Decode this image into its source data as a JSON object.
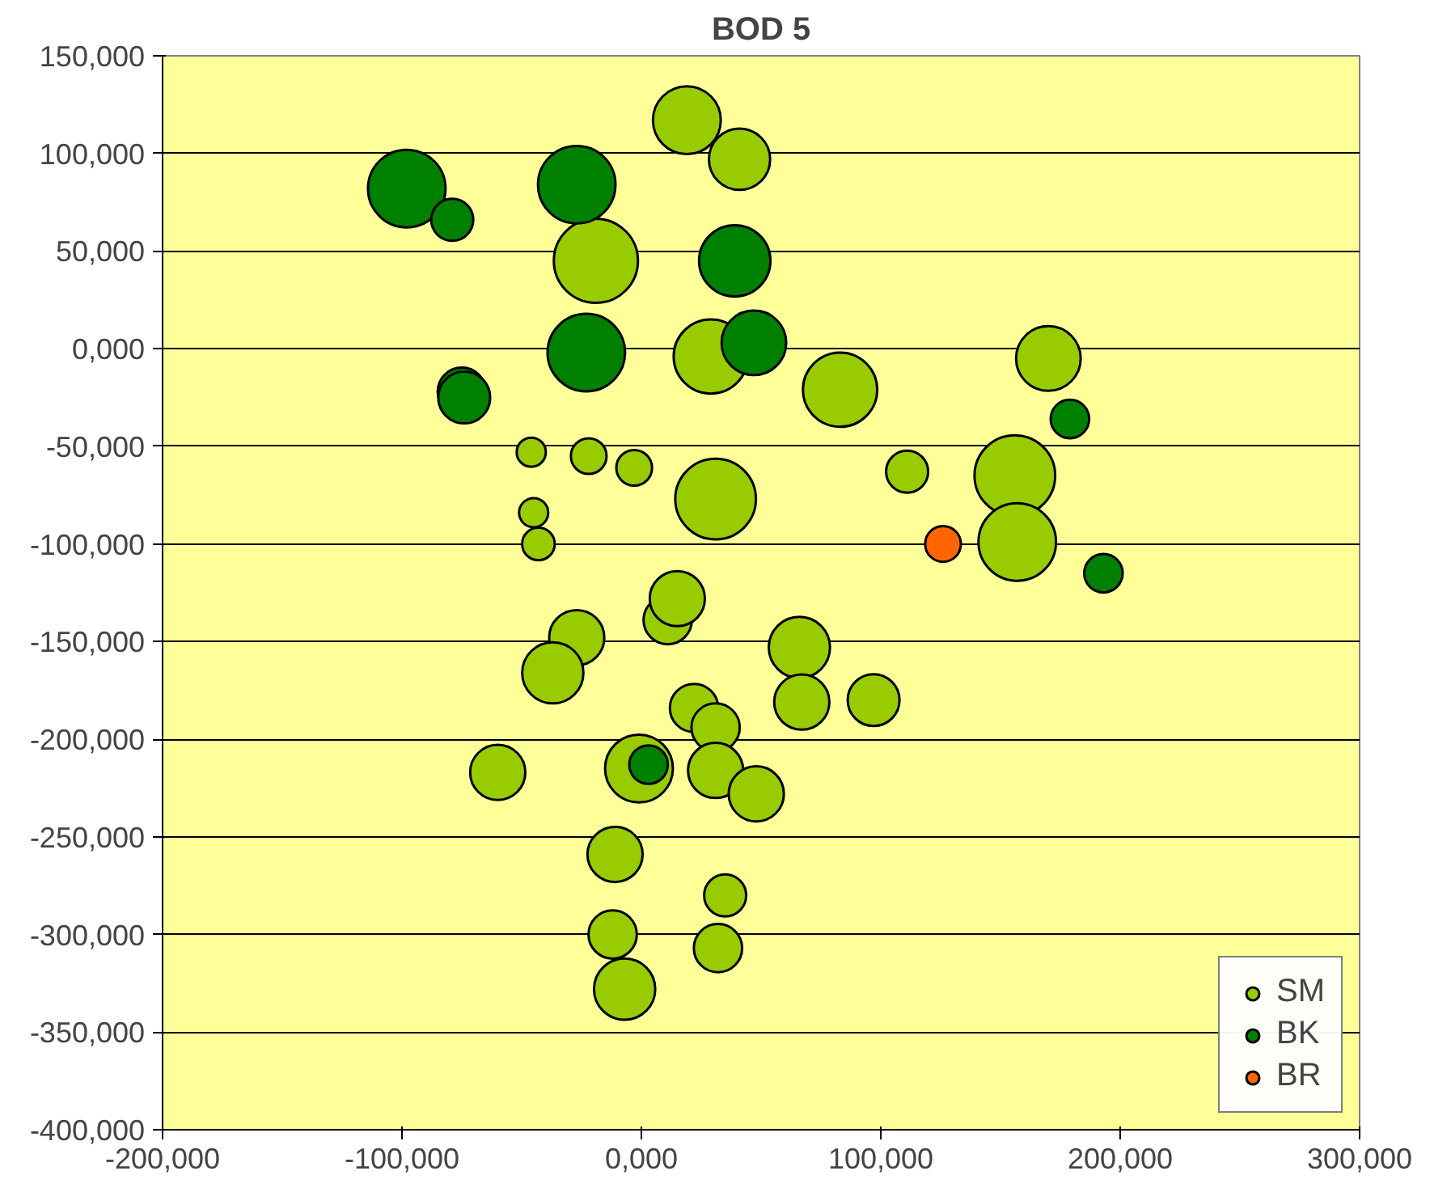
{
  "chart_data": {
    "type": "bubble",
    "title": "BOD 5",
    "xlim": [
      -200,
      300
    ],
    "xticks": [
      {
        "value": -200,
        "label": "-200,000"
      },
      {
        "value": -100,
        "label": "-100,000"
      },
      {
        "value": 0,
        "label": "0,000"
      },
      {
        "value": 100,
        "label": "100,000"
      },
      {
        "value": 200,
        "label": "200,000"
      },
      {
        "value": 300,
        "label": "300,000"
      }
    ],
    "ylim": [
      -400,
      150
    ],
    "yticks": [
      {
        "value": -400,
        "label": "-400,000"
      },
      {
        "value": -350,
        "label": "-350,000"
      },
      {
        "value": -300,
        "label": "-300,000"
      },
      {
        "value": -250,
        "label": "-250,000"
      },
      {
        "value": -200,
        "label": "-200,000"
      },
      {
        "value": -150,
        "label": "-150,000"
      },
      {
        "value": -100,
        "label": "-100,000"
      },
      {
        "value": -50,
        "label": "-50,000"
      },
      {
        "value": 0,
        "label": "0,000"
      },
      {
        "value": 50,
        "label": "50,000"
      },
      {
        "value": 100,
        "label": "100,000"
      },
      {
        "value": 150,
        "label": "150,000"
      }
    ],
    "grid": "y",
    "legend": "bottom right",
    "series": [
      {
        "name": "SM",
        "color": "#99cc00",
        "x": [
          19,
          41,
          -19,
          29,
          83,
          170,
          111,
          156,
          157,
          31,
          -3,
          -22,
          -46,
          -45,
          -43,
          -27,
          -37,
          11,
          15,
          66,
          67,
          97,
          22,
          31,
          31,
          48,
          -60,
          -1,
          -11,
          -12,
          -7,
          35,
          32
        ],
        "values": [
          117,
          97,
          45,
          -4,
          -21,
          -5,
          -63,
          -65,
          -99,
          -77,
          -61,
          -55,
          -53,
          -84,
          -100,
          -148,
          -166,
          -139,
          -128,
          -153,
          -181,
          -180,
          -184,
          -194,
          -216,
          -228,
          -217,
          -215,
          -259,
          -300,
          -328,
          -280,
          -307
        ],
        "sizes": [
          0.65,
          0.53,
          1.0,
          0.78,
          0.78,
          0.59,
          0.25,
          0.92,
          0.85,
          0.92,
          0.18,
          0.18,
          0.12,
          0.12,
          0.15,
          0.43,
          0.53,
          0.33,
          0.43,
          0.53,
          0.43,
          0.38,
          0.33,
          0.33,
          0.43,
          0.43,
          0.43,
          0.65,
          0.43,
          0.33,
          0.53,
          0.25,
          0.33
        ]
      },
      {
        "name": "BK",
        "color": "#008000",
        "x": [
          -98,
          -79,
          -27,
          39,
          -23,
          47,
          -75,
          -74,
          179,
          193,
          3
        ],
        "values": [
          82,
          66,
          84,
          45,
          -2,
          3,
          -22,
          -25,
          -36,
          -115,
          -213
        ],
        "sizes": [
          0.85,
          0.25,
          0.85,
          0.72,
          0.85,
          0.59,
          0.33,
          0.38,
          0.21,
          0.21,
          0.21
        ]
      },
      {
        "name": "BR",
        "color": "#ff6600",
        "x": [
          126
        ],
        "values": [
          -100
        ],
        "sizes": [
          0.18
        ]
      }
    ]
  }
}
